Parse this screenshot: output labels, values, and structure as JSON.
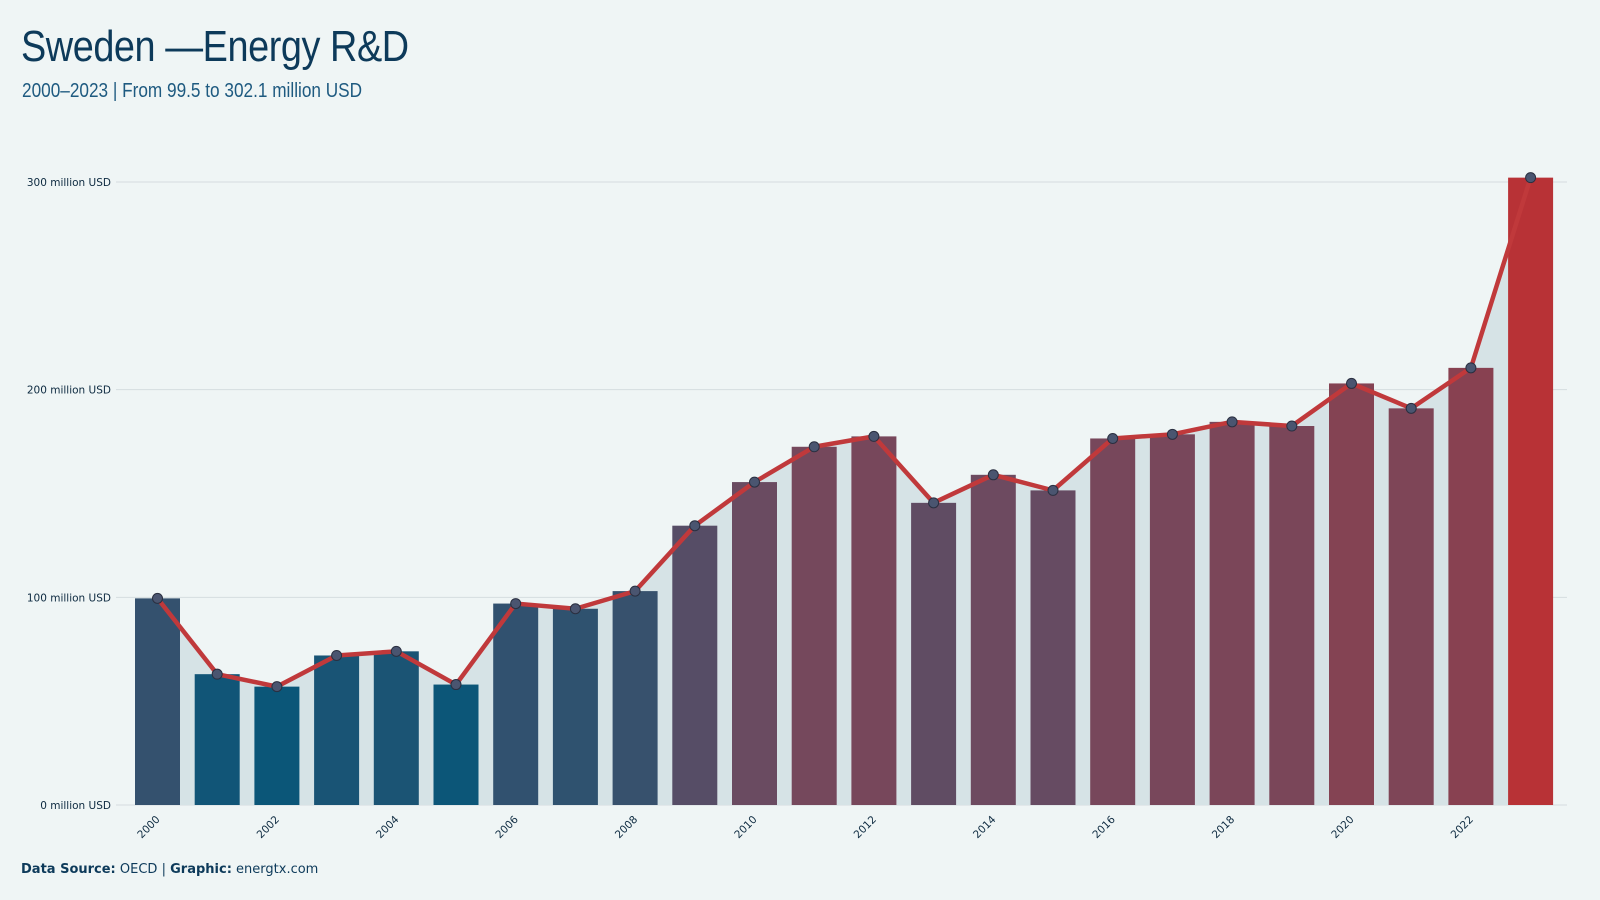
{
  "title": "Sweden —Energy R&D",
  "subtitle": "2000–2023 | From 99.5 to 302.1 million USD",
  "footer": {
    "source_label": "Data Source:",
    "source_value": "OECD",
    "separator": "|",
    "graphic_label": "Graphic:",
    "graphic_value": "energtx.com"
  },
  "chart_data": {
    "type": "bar",
    "title": "Sweden —Energy R&D",
    "subtitle": "2000–2023 | From 99.5 to 302.1 million USD",
    "xlabel": "",
    "ylabel": "",
    "ylim": [
      0,
      300
    ],
    "yticks": [
      0,
      100,
      200,
      300
    ],
    "ytick_labels": [
      "0 million USD",
      "100 million USD",
      "200 million USD",
      "300 million USD"
    ],
    "xtick_labels": [
      "2000",
      "2002",
      "2004",
      "2006",
      "2008",
      "2010",
      "2012",
      "2014",
      "2016",
      "2018",
      "2020",
      "2022"
    ],
    "categories": [
      "2000",
      "2001",
      "2002",
      "2003",
      "2004",
      "2005",
      "2006",
      "2007",
      "2008",
      "2009",
      "2010",
      "2011",
      "2012",
      "2013",
      "2014",
      "2015",
      "2016",
      "2017",
      "2018",
      "2019",
      "2020",
      "2021",
      "2022",
      "2023"
    ],
    "values": [
      99.5,
      63,
      57,
      72,
      74,
      58,
      97,
      94.5,
      103,
      134.5,
      155.5,
      172.5,
      177.5,
      145.5,
      159,
      151.5,
      176.5,
      178.5,
      184.5,
      182.5,
      203,
      191,
      210.5,
      302.1
    ],
    "grid": "horizontal",
    "overlay": "line with markers and shaded area",
    "colors": {
      "low": "#0b5678",
      "mid": "#6e4a60",
      "high": "#b83236",
      "line": "#c0393b",
      "marker": "#4a5570",
      "area": "#d6e3e6",
      "grid": "#d5dcdf"
    }
  }
}
